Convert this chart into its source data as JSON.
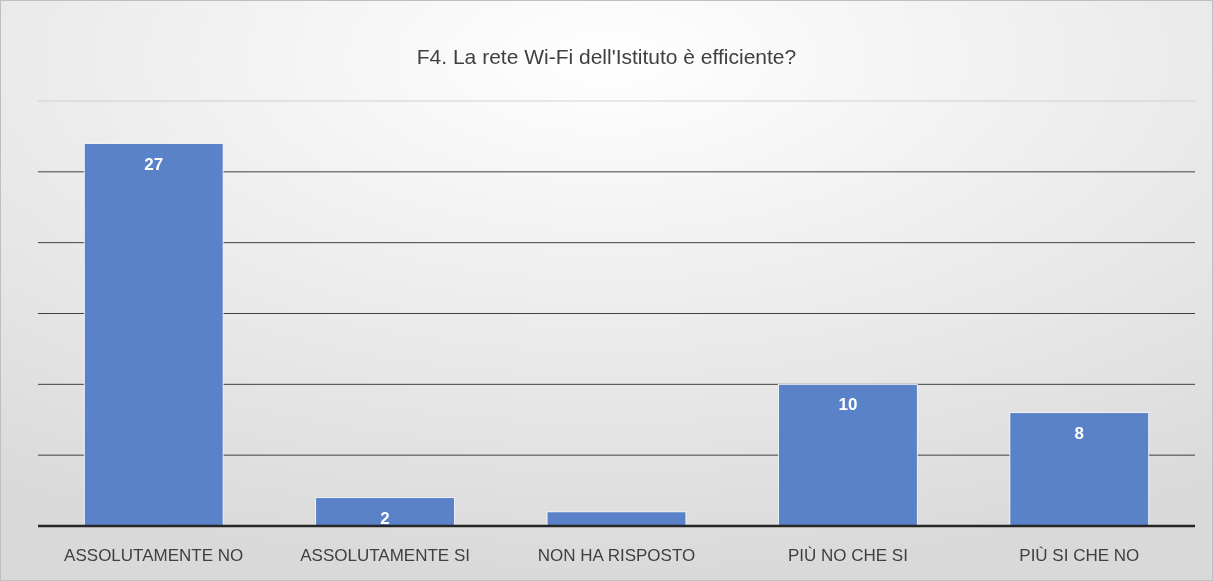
{
  "chart_data": {
    "type": "bar",
    "title": "F4. La rete Wi-Fi dell'Istituto è efficiente?",
    "categories": [
      "ASSOLUTAMENTE NO",
      "ASSOLUTAMENTE SI",
      "NON HA RISPOSTO",
      "PIÙ NO CHE SI",
      "PIÙ SI CHE NO"
    ],
    "values": [
      27,
      2,
      1,
      10,
      8
    ],
    "value_labels": [
      "27",
      "2",
      null,
      "10",
      "8"
    ],
    "color": "#5a82c8",
    "ylim": [
      0,
      30
    ],
    "yticks": [
      {
        "value": 0,
        "label": null
      },
      {
        "value": 5,
        "label": null
      },
      {
        "value": 10,
        "label": null
      },
      {
        "value": 15,
        "label": null
      },
      {
        "value": 20,
        "label": null
      },
      {
        "value": 25,
        "label": null
      },
      {
        "value": 30,
        "label": null
      }
    ],
    "grid": true,
    "tick_labels": "x"
  }
}
